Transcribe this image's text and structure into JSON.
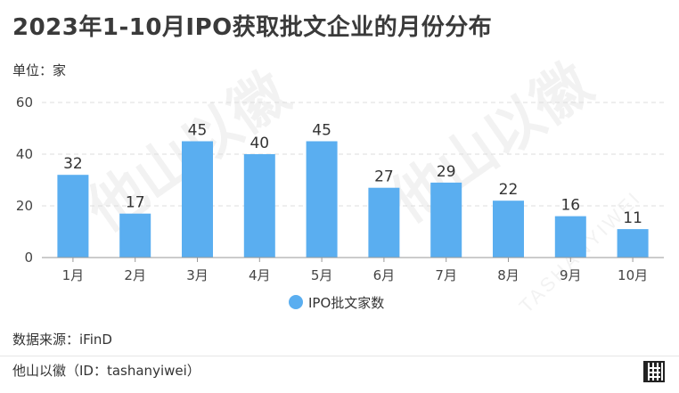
{
  "header": {
    "title": "2023年1-10月IPO获取批文企业的月份分布",
    "unit": "单位：家"
  },
  "chart_data": {
    "type": "bar",
    "categories": [
      "1月",
      "2月",
      "3月",
      "4月",
      "5月",
      "6月",
      "7月",
      "8月",
      "9月",
      "10月"
    ],
    "series": [
      {
        "name": "IPO批文家数",
        "values": [
          32,
          17,
          45,
          40,
          45,
          27,
          29,
          22,
          16,
          11
        ]
      }
    ],
    "ylim": [
      0,
      60
    ],
    "yticks": [
      0,
      20,
      40,
      60
    ],
    "grid": true,
    "legend": "bottom",
    "bar_color": "#5aaef0"
  },
  "footer": {
    "source": "数据来源：iFinD",
    "author": "他山以徽（ID：tashanyiwei）"
  }
}
